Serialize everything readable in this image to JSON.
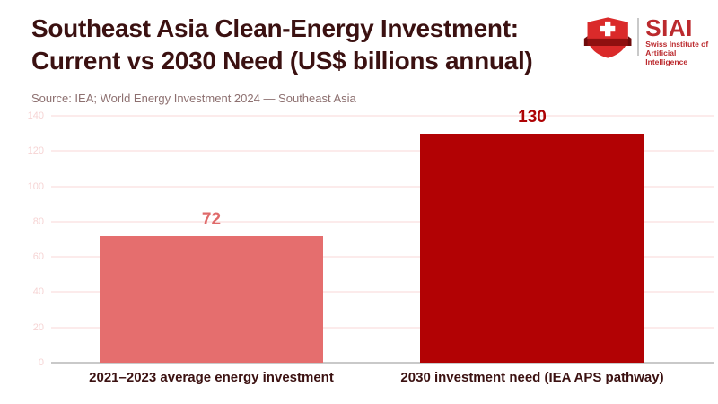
{
  "header": {
    "title_line1": "Southeast Asia Clean-Energy Investment:",
    "title_line2": "Current vs 2030 Need (US$ billions annual)",
    "source": "Source: IEA; World Energy Investment 2024 — Southeast Asia"
  },
  "logo": {
    "name": "SIAI",
    "subtitle_line1": "Swiss Institute of",
    "subtitle_line2": "Artificial Intelligence",
    "accent": "#bb2a2e"
  },
  "chart_data": {
    "type": "bar",
    "title": "Southeast Asia Clean-Energy Investment: Current vs 2030 Need (US$ billions annual)",
    "source": "Source: IEA; World Energy Investment 2024 — Southeast Asia",
    "categories": [
      "2021–2023 average energy investment",
      "2030 investment need (IEA APS pathway)"
    ],
    "values": [
      72,
      130
    ],
    "bar_colors": [
      "#e56e6e",
      "#b20204"
    ],
    "value_label_colors": [
      "#df6a6a",
      "#ad0305"
    ],
    "xlabel": "",
    "ylabel": "",
    "ylim": [
      0,
      140
    ],
    "yticks": [
      0,
      20,
      40,
      60,
      80,
      100,
      120,
      140
    ],
    "grid": true,
    "gridline_color": "#fcebeb",
    "tick_label_color": "#f6d4d4",
    "axis_color": "#c9c9c9",
    "legend": "none"
  },
  "colors": {
    "title": "#3b1111",
    "source_text": "#8d7070",
    "background": "#ffffff"
  }
}
